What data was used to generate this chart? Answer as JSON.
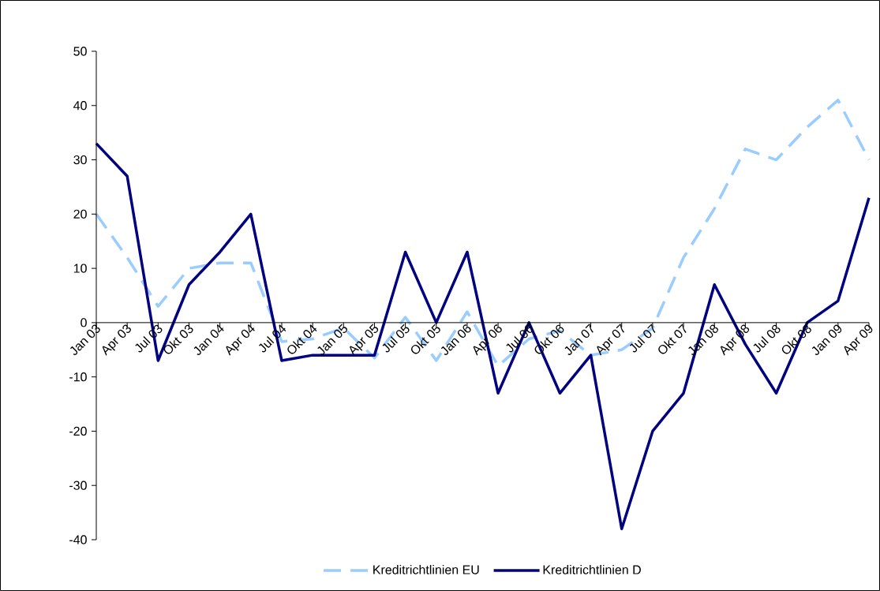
{
  "chart_data": {
    "type": "line",
    "categories": [
      "Jan 03",
      "Apr 03",
      "Jul 03",
      "Okt 03",
      "Jan 04",
      "Apr 04",
      "Jul 04",
      "Okt 04",
      "Jan 05",
      "Apr 05",
      "Jul 05",
      "Okt 05",
      "Jan 06",
      "Apr 06",
      "Jul 06",
      "Okt 06",
      "Jan 07",
      "Apr 07",
      "Jul 07",
      "Okt 07",
      "Jan 08",
      "Apr 08",
      "Jul 08",
      "Okt 08",
      "Jan 09",
      "Apr 09"
    ],
    "ylim": [
      -40,
      50
    ],
    "yticks": [
      -40,
      -30,
      -20,
      -10,
      0,
      10,
      20,
      30,
      40,
      50
    ],
    "legend": "bottom",
    "grid": false,
    "marker": "none",
    "series": [
      {
        "name": "Kreditrichtlinien EU",
        "color": "#99ccff",
        "line_style": "dashed",
        "values": [
          20,
          12,
          3,
          10,
          11,
          11,
          -3.5,
          -3,
          -1,
          -6.5,
          1,
          -7,
          2,
          -8,
          -3,
          -1.5,
          -6,
          -5,
          -1,
          12,
          21,
          32,
          30,
          36,
          41,
          30
        ]
      },
      {
        "name": "Kreditrichtlinien D",
        "color": "#000080",
        "line_style": "solid",
        "values": [
          33,
          27,
          -7,
          7,
          13,
          20,
          -7,
          -6,
          -6,
          -6,
          13,
          0,
          13,
          -13,
          0,
          -13,
          -6,
          -38,
          -20,
          -13,
          7,
          -4,
          -13,
          0,
          4,
          23
        ]
      }
    ]
  }
}
